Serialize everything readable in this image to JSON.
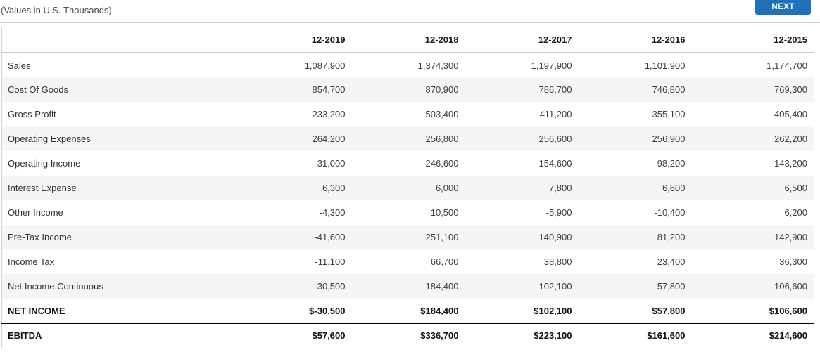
{
  "page": {
    "subtitle": "(Values in U.S. Thousands)"
  },
  "toolbar": {
    "next_label": "NEXT"
  },
  "colors": {
    "accent_blue": "#1f72b8",
    "row_stripe": "#f5f5f5",
    "divider_gray": "#cccccc"
  },
  "table": {
    "columns": [
      "12-2019",
      "12-2018",
      "12-2017",
      "12-2016",
      "12-2015"
    ],
    "rows": [
      {
        "label": "Sales",
        "values": [
          "1,087,900",
          "1,374,300",
          "1,197,900",
          "1,101,900",
          "1,174,700"
        ]
      },
      {
        "label": "Cost Of Goods",
        "values": [
          "854,700",
          "870,900",
          "786,700",
          "746,800",
          "769,300"
        ]
      },
      {
        "label": "Gross Profit",
        "values": [
          "233,200",
          "503,400",
          "411,200",
          "355,100",
          "405,400"
        ]
      },
      {
        "label": "Operating Expenses",
        "values": [
          "264,200",
          "256,800",
          "256,600",
          "256,900",
          "262,200"
        ]
      },
      {
        "label": "Operating Income",
        "values": [
          "-31,000",
          "246,600",
          "154,600",
          "98,200",
          "143,200"
        ]
      },
      {
        "label": "Interest Expense",
        "values": [
          "6,300",
          "6,000",
          "7,800",
          "6,600",
          "6,500"
        ]
      },
      {
        "label": "Other Income",
        "values": [
          "-4,300",
          "10,500",
          "-5,900",
          "-10,400",
          "6,200"
        ]
      },
      {
        "label": "Pre-Tax Income",
        "values": [
          "-41,600",
          "251,100",
          "140,900",
          "81,200",
          "142,900"
        ]
      },
      {
        "label": "Income Tax",
        "values": [
          "-11,100",
          "66,700",
          "38,800",
          "23,400",
          "36,300"
        ]
      },
      {
        "label": "Net Income Continuous",
        "values": [
          "-30,500",
          "184,400",
          "102,100",
          "57,800",
          "106,600"
        ]
      }
    ],
    "summary_rows": [
      {
        "label": "NET INCOME",
        "values": [
          "$-30,500",
          "$184,400",
          "$102,100",
          "$57,800",
          "$106,600"
        ]
      },
      {
        "label": "EBITDA",
        "values": [
          "$57,600",
          "$336,700",
          "$223,100",
          "$161,600",
          "$214,600"
        ]
      }
    ]
  }
}
